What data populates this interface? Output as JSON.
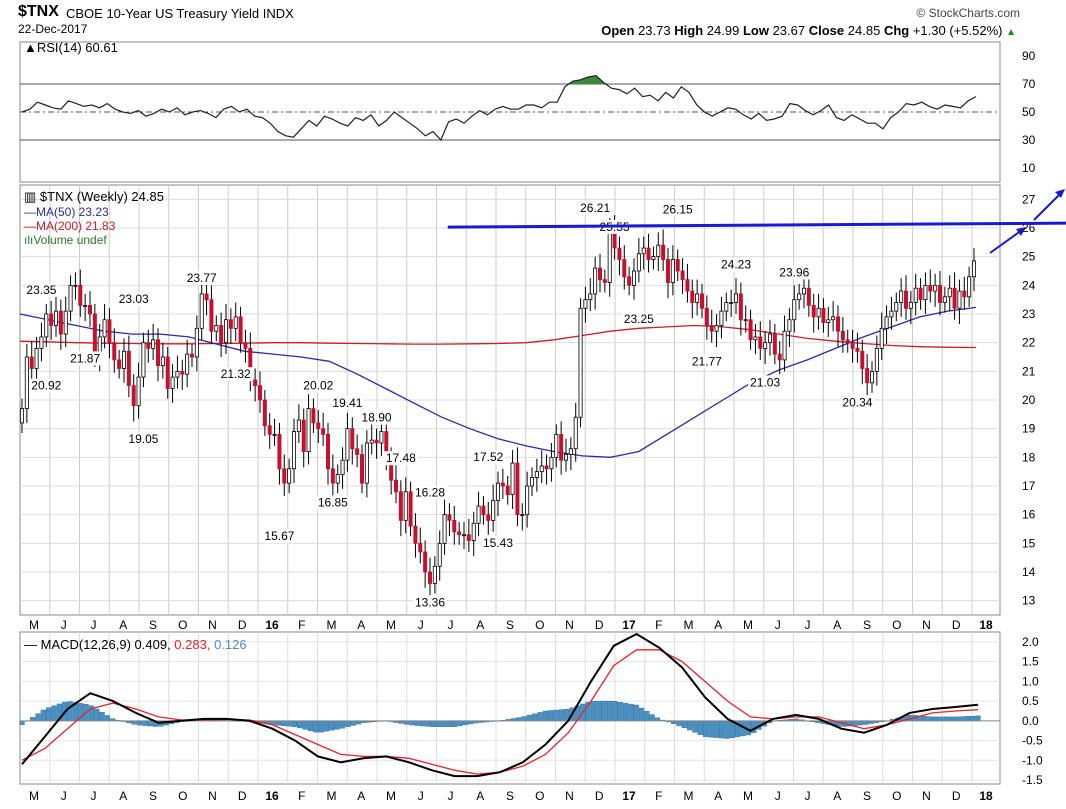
{
  "header": {
    "symbol": "$TNX",
    "name": "CBOE 10-Year US Treasury Yield INDX",
    "date": "22-Dec-2017",
    "brand": "© StockCharts.com",
    "open_label": "Open",
    "open": "23.73",
    "high_label": "High",
    "high": "24.99",
    "low_label": "Low",
    "low": "23.67",
    "close_label": "Close",
    "close": "24.85",
    "chg_label": "Chg",
    "chg": "+1.30 (+5.52%)",
    "chg_icon": "triangle-up-icon"
  },
  "colors": {
    "up_candle": "#ffffff",
    "down_candle": "#c8102e",
    "ma50": "#2a2aa8",
    "ma200": "#c8202a",
    "macd_line": "#000000",
    "signal_line": "#e8232a",
    "histogram": "#4a90c0",
    "trendline": "#1a1ad0",
    "rsi_overbought_fill": "#3a8a3a"
  },
  "chart_data": [
    {
      "type": "line",
      "panel": "rsi",
      "legend": "RSI(14) 60.61",
      "ylim": [
        0,
        100
      ],
      "yticks": [
        10,
        30,
        50,
        70,
        90
      ],
      "reference_lines": [
        30,
        50,
        70
      ],
      "values": [
        50,
        52,
        57,
        55,
        53,
        52,
        58,
        56,
        54,
        55,
        53,
        56,
        52,
        50,
        49,
        51,
        47,
        49,
        52,
        50,
        53,
        48,
        50,
        51,
        49,
        46,
        52,
        54,
        50,
        52,
        47,
        46,
        42,
        36,
        33,
        32,
        38,
        44,
        40,
        47,
        45,
        42,
        40,
        46,
        44,
        48,
        40,
        44,
        50,
        46,
        42,
        38,
        33,
        36,
        30,
        43,
        45,
        42,
        47,
        51,
        48,
        52,
        54,
        52,
        52,
        55,
        55,
        53,
        57,
        57,
        68,
        72,
        73,
        75,
        76,
        71,
        67,
        66,
        63,
        67,
        61,
        62,
        58,
        64,
        60,
        68,
        64,
        55,
        50,
        47,
        50,
        53,
        52,
        48,
        45,
        49,
        44,
        45,
        47,
        56,
        55,
        51,
        48,
        51,
        55,
        46,
        44,
        48,
        45,
        42,
        42,
        38,
        46,
        50,
        56,
        55,
        57,
        54,
        52,
        55,
        54,
        53,
        58,
        61
      ]
    },
    {
      "type": "candlestick",
      "panel": "price",
      "legend": "$TNX (Weekly) 24.85",
      "ylim": [
        12.5,
        27.5
      ],
      "yticks": [
        13,
        14,
        15,
        16,
        17,
        18,
        19,
        20,
        21,
        22,
        23,
        24,
        25,
        26,
        27
      ],
      "x_labels": [
        "M",
        "J",
        "J",
        "A",
        "S",
        "O",
        "N",
        "D",
        "16",
        "F",
        "M",
        "A",
        "M",
        "J",
        "J",
        "A",
        "S",
        "O",
        "N",
        "D",
        "17",
        "F",
        "M",
        "A",
        "M",
        "J",
        "J",
        "A",
        "S",
        "O",
        "N",
        "D",
        "18"
      ],
      "closes": [
        19.7,
        21.5,
        21.1,
        21.8,
        22.2,
        23.0,
        22.6,
        23.1,
        22.3,
        23.1,
        24.0,
        24.0,
        23.3,
        23.3,
        23.0,
        21.5,
        22.2,
        22.8,
        22.0,
        21.4,
        21.1,
        21.7,
        20.5,
        19.8,
        20.8,
        22.0,
        21.8,
        22.1,
        21.2,
        21.5,
        20.4,
        20.8,
        21.0,
        20.9,
        21.6,
        21.5,
        22.5,
        23.7,
        23.5,
        22.4,
        22.6,
        22.0,
        22.8,
        22.5,
        22.9,
        22.0,
        21.8,
        20.7,
        20.5,
        20.0,
        19.1,
        18.8,
        18.8,
        17.6,
        17.1,
        17.6,
        18.9,
        19.3,
        18.2,
        19.7,
        19.2,
        19.0,
        18.8,
        17.6,
        17.1,
        17.4,
        17.9,
        19.0,
        18.3,
        18.1,
        17.1,
        18.5,
        18.6,
        18.5,
        18.9,
        17.9,
        17.2,
        16.8,
        15.8,
        16.8,
        15.6,
        15.0,
        14.7,
        14.0,
        13.6,
        14.2,
        15.0,
        16.0,
        15.8,
        15.4,
        15.3,
        15.3,
        15.1,
        15.7,
        16.3,
        16.0,
        15.8,
        16.5,
        17.1,
        17.0,
        16.7,
        17.8,
        16.0,
        16.0,
        17.0,
        17.3,
        17.5,
        17.7,
        17.6,
        18.0,
        18.8,
        17.9,
        18.1,
        18.3,
        19.4,
        23.2,
        23.5,
        23.7,
        24.6,
        24.2,
        24.1,
        25.9,
        25.3,
        24.9,
        24.3,
        24.0,
        24.5,
        25.1,
        25.3,
        24.9,
        25.0,
        25.4,
        24.9,
        24.1,
        24.9,
        24.5,
        24.2,
        23.8,
        23.4,
        23.7,
        23.2,
        22.6,
        22.4,
        22.6,
        23.1,
        23.4,
        23.4,
        23.7,
        22.8,
        22.8,
        22.1,
        22.2,
        21.8,
        22.0,
        22.3,
        21.6,
        21.4,
        22.4,
        22.8,
        23.5,
        23.7,
        23.9,
        23.3,
        22.9,
        23.2,
        22.7,
        22.8,
        22.9,
        22.4,
        22.1,
        22.0,
        21.8,
        21.7,
        21.1,
        20.6,
        21.0,
        21.8,
        22.5,
        22.9,
        23.1,
        23.4,
        23.8,
        23.2,
        23.4,
        23.9,
        23.5,
        24.0,
        23.8,
        24.0,
        23.4,
        23.6,
        23.9,
        23.2,
        23.8,
        23.6,
        24.3,
        24.85
      ],
      "ma50": {
        "name": "MA(50) 23.23",
        "values": [
          23.0,
          22.8,
          22.6,
          22.4,
          22.3,
          22.3,
          22.2,
          21.95,
          21.7,
          21.6,
          21.5,
          21.35,
          20.9,
          20.4,
          19.9,
          19.4,
          19.0,
          18.65,
          18.4,
          18.2,
          18.05,
          18.0,
          18.2,
          18.8,
          19.4,
          20.0,
          20.6,
          21.05,
          21.4,
          21.8,
          22.2,
          22.55,
          22.9,
          23.1,
          23.23
        ]
      },
      "ma200": {
        "name": "MA(200) 21.83",
        "values": [
          22.05,
          22.03,
          22.0,
          21.98,
          21.97,
          21.96,
          21.96,
          21.97,
          21.98,
          22.0,
          22.0,
          21.98,
          21.97,
          21.96,
          21.95,
          21.95,
          21.96,
          21.97,
          22.0,
          22.1,
          22.25,
          22.4,
          22.5,
          22.55,
          22.6,
          22.55,
          22.45,
          22.3,
          22.15,
          22.05,
          21.97,
          21.9,
          21.86,
          21.84,
          21.83
        ]
      },
      "volume_legend": "Volume undef",
      "annotations": [
        {
          "label": "23.35",
          "x": 4,
          "y": 23.35
        },
        {
          "label": "20.92",
          "x": 5,
          "y": 20.92
        },
        {
          "label": "21.87",
          "x": 13,
          "y": 21.87
        },
        {
          "label": "23.03",
          "x": 23,
          "y": 23.03
        },
        {
          "label": "19.05",
          "x": 25,
          "y": 19.05
        },
        {
          "label": "23.77",
          "x": 37,
          "y": 23.77
        },
        {
          "label": "21.32",
          "x": 44,
          "y": 21.32
        },
        {
          "label": "15.67",
          "x": 53,
          "y": 15.67
        },
        {
          "label": "20.02",
          "x": 61,
          "y": 20.02
        },
        {
          "label": "19.41",
          "x": 67,
          "y": 19.41
        },
        {
          "label": "16.85",
          "x": 64,
          "y": 16.85
        },
        {
          "label": "18.90",
          "x": 73,
          "y": 18.9
        },
        {
          "label": "17.48",
          "x": 78,
          "y": 17.48
        },
        {
          "label": "16.28",
          "x": 84,
          "y": 16.28
        },
        {
          "label": "13.36",
          "x": 84,
          "y": 13.36
        },
        {
          "label": "17.52",
          "x": 96,
          "y": 17.52
        },
        {
          "label": "15.43",
          "x": 98,
          "y": 15.43
        },
        {
          "label": "26.21",
          "x": 118,
          "y": 26.21
        },
        {
          "label": "25.55",
          "x": 122,
          "y": 25.55
        },
        {
          "label": "23.25",
          "x": 127,
          "y": 23.25
        },
        {
          "label": "26.15",
          "x": 135,
          "y": 26.15
        },
        {
          "label": "21.77",
          "x": 141,
          "y": 21.77
        },
        {
          "label": "24.23",
          "x": 147,
          "y": 24.23
        },
        {
          "label": "21.03",
          "x": 153,
          "y": 21.03
        },
        {
          "label": "23.96",
          "x": 159,
          "y": 23.96
        },
        {
          "label": "20.34",
          "x": 172,
          "y": 20.34
        }
      ],
      "trendline": {
        "from": [
          100,
          26.1
        ],
        "to": [
          205,
          26.1
        ]
      }
    },
    {
      "type": "line",
      "panel": "macd",
      "legend_prefix": "MACD(12,26,9)",
      "legend_macd": "0.409",
      "legend_signal": "0.283",
      "legend_hist": "0.126",
      "ylim": [
        -1.6,
        2.25
      ],
      "yticks": [
        "2.0",
        "1.5",
        "1.0",
        "0.5",
        "0.0",
        "-0.5",
        "-1.0",
        "-1.5"
      ],
      "yticks_values": [
        2.0,
        1.5,
        1.0,
        0.5,
        0.0,
        -0.5,
        -1.0,
        -1.5
      ],
      "x_labels": [
        "M",
        "J",
        "J",
        "A",
        "S",
        "O",
        "N",
        "D",
        "16",
        "F",
        "M",
        "A",
        "M",
        "J",
        "J",
        "A",
        "S",
        "O",
        "N",
        "D",
        "17",
        "F",
        "M",
        "A",
        "M",
        "J",
        "J",
        "A",
        "S",
        "O",
        "N",
        "D",
        "18"
      ],
      "macd": [
        -1.1,
        -0.4,
        0.3,
        0.7,
        0.5,
        0.2,
        -0.05,
        0.0,
        0.05,
        0.05,
        0.0,
        -0.2,
        -0.5,
        -0.9,
        -1.05,
        -0.95,
        -0.9,
        -1.05,
        -1.25,
        -1.4,
        -1.4,
        -1.3,
        -1.05,
        -0.6,
        0.0,
        1.0,
        1.9,
        2.2,
        1.85,
        1.35,
        0.6,
        0.05,
        -0.25,
        0.05,
        0.15,
        0.05,
        -0.2,
        -0.3,
        -0.1,
        0.2,
        0.3,
        0.35,
        0.409
      ],
      "signal": [
        -1.0,
        -0.7,
        -0.2,
        0.3,
        0.45,
        0.3,
        0.1,
        0.02,
        0.02,
        0.04,
        0.02,
        -0.1,
        -0.35,
        -0.6,
        -0.85,
        -0.9,
        -0.9,
        -0.95,
        -1.1,
        -1.25,
        -1.35,
        -1.3,
        -1.15,
        -0.85,
        -0.3,
        0.5,
        1.4,
        1.8,
        1.8,
        1.5,
        1.0,
        0.5,
        0.1,
        0.05,
        0.1,
        0.1,
        -0.05,
        -0.2,
        -0.1,
        0.05,
        0.2,
        0.25,
        0.283
      ]
    }
  ]
}
